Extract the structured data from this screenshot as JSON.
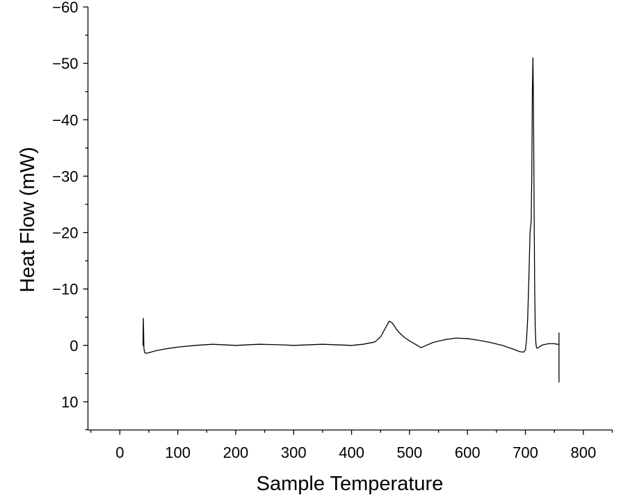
{
  "chart_data": {
    "type": "line",
    "title": "",
    "xlabel": "Sample Temperature",
    "ylabel": "Heat Flow (mW)",
    "xlim": [
      -55,
      850
    ],
    "ylim": [
      15,
      -60
    ],
    "y_inverted": true,
    "xticks": [
      0,
      100,
      200,
      300,
      400,
      500,
      600,
      700,
      800
    ],
    "yticks": [
      10,
      0,
      -10,
      -20,
      -30,
      -40,
      -50,
      -60
    ],
    "xtick_labels": [
      "0",
      "100",
      "200",
      "300",
      "400",
      "500",
      "600",
      "700",
      "800"
    ],
    "ytick_labels": [
      "10",
      "0",
      "−10",
      "−20",
      "−30",
      "−40",
      "−50",
      "−60"
    ],
    "grid": false,
    "legend": "none",
    "line_color": "#000000",
    "series": [
      {
        "x": [
          40,
          40.5,
          41,
          41.5,
          43,
          46,
          50,
          60,
          80,
          100,
          130,
          160,
          200,
          240,
          280,
          300,
          350,
          400,
          420,
          440,
          450,
          458,
          465,
          470,
          480,
          490,
          500,
          520,
          540,
          560,
          580,
          600,
          620,
          640,
          660,
          680,
          690,
          697,
          700,
          702,
          704,
          706,
          708,
          710,
          711,
          712,
          713,
          714,
          715,
          716,
          717,
          718,
          719,
          720,
          722,
          725,
          730,
          740,
          750,
          755,
          758,
          758,
          758,
          758
        ],
        "y": [
          0,
          -4.8,
          -3,
          0.5,
          1.3,
          1.4,
          1.3,
          1,
          0.6,
          0.3,
          0,
          -0.2,
          0,
          -0.2,
          -0.1,
          0,
          -0.2,
          0,
          -0.2,
          -0.6,
          -1.5,
          -3,
          -4.3,
          -4,
          -2.5,
          -1.5,
          -0.8,
          0.4,
          -0.5,
          -1,
          -1.3,
          -1.2,
          -0.9,
          -0.5,
          0,
          0.7,
          1.1,
          1.2,
          0.8,
          -1,
          -5,
          -12,
          -20,
          -22,
          -30,
          -45,
          -51,
          -42,
          -25,
          -10,
          -3,
          -0.5,
          0.3,
          0.5,
          0.4,
          0.2,
          -0.1,
          -0.3,
          -0.3,
          -0.2,
          -0.2,
          -2.2,
          6.5,
          0
        ]
      }
    ]
  }
}
